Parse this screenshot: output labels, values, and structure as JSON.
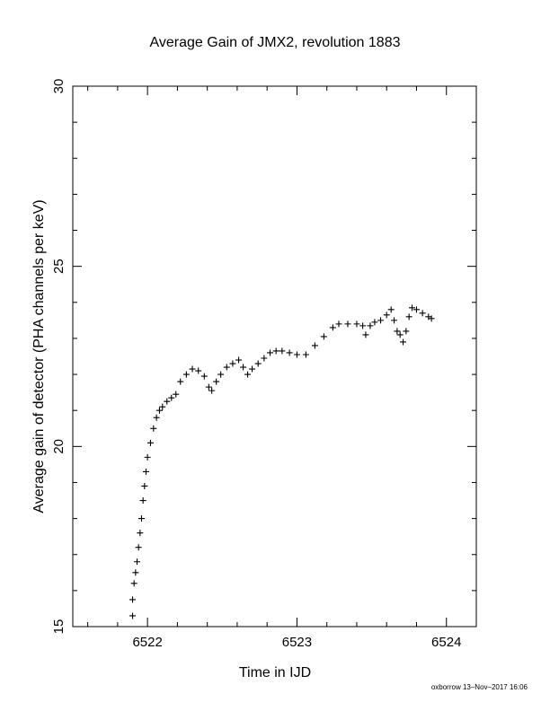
{
  "chart_data": {
    "type": "scatter",
    "title": "Average Gain of JMX2, revolution 1883",
    "xlabel": "Time in IJD",
    "ylabel": "Average gain of detector (PHA channels per keV)",
    "xlim": [
      6521.5,
      6524.2
    ],
    "ylim": [
      15,
      30
    ],
    "xticks": [
      6522,
      6523,
      6524
    ],
    "yticks": [
      15,
      20,
      25,
      30
    ],
    "marker": "plus",
    "grid": false,
    "legend": "none",
    "series": [
      {
        "points": [
          [
            6521.9,
            15.3
          ],
          [
            6521.9,
            15.75
          ],
          [
            6521.91,
            16.2
          ],
          [
            6521.92,
            16.5
          ],
          [
            6521.93,
            16.8
          ],
          [
            6521.94,
            17.2
          ],
          [
            6521.95,
            17.6
          ],
          [
            6521.96,
            18.0
          ],
          [
            6521.97,
            18.5
          ],
          [
            6521.98,
            18.9
          ],
          [
            6521.99,
            19.3
          ],
          [
            6522.0,
            19.7
          ],
          [
            6522.02,
            20.1
          ],
          [
            6522.04,
            20.5
          ],
          [
            6522.06,
            20.8
          ],
          [
            6522.08,
            21.0
          ],
          [
            6522.1,
            21.1
          ],
          [
            6522.13,
            21.25
          ],
          [
            6522.16,
            21.35
          ],
          [
            6522.19,
            21.45
          ],
          [
            6522.22,
            21.8
          ],
          [
            6522.26,
            22.0
          ],
          [
            6522.3,
            22.15
          ],
          [
            6522.34,
            22.1
          ],
          [
            6522.38,
            21.95
          ],
          [
            6522.41,
            21.65
          ],
          [
            6522.43,
            21.55
          ],
          [
            6522.46,
            21.8
          ],
          [
            6522.49,
            22.0
          ],
          [
            6522.53,
            22.2
          ],
          [
            6522.57,
            22.3
          ],
          [
            6522.61,
            22.4
          ],
          [
            6522.64,
            22.2
          ],
          [
            6522.67,
            22.0
          ],
          [
            6522.7,
            22.15
          ],
          [
            6522.74,
            22.3
          ],
          [
            6522.78,
            22.45
          ],
          [
            6522.82,
            22.6
          ],
          [
            6522.86,
            22.65
          ],
          [
            6522.9,
            22.65
          ],
          [
            6522.95,
            22.6
          ],
          [
            6523.0,
            22.55
          ],
          [
            6523.06,
            22.55
          ],
          [
            6523.12,
            22.8
          ],
          [
            6523.18,
            23.05
          ],
          [
            6523.24,
            23.3
          ],
          [
            6523.28,
            23.4
          ],
          [
            6523.34,
            23.4
          ],
          [
            6523.4,
            23.4
          ],
          [
            6523.44,
            23.35
          ],
          [
            6523.46,
            23.1
          ],
          [
            6523.49,
            23.35
          ],
          [
            6523.52,
            23.45
          ],
          [
            6523.56,
            23.5
          ],
          [
            6523.6,
            23.65
          ],
          [
            6523.63,
            23.8
          ],
          [
            6523.65,
            23.5
          ],
          [
            6523.67,
            23.2
          ],
          [
            6523.69,
            23.1
          ],
          [
            6523.71,
            22.9
          ],
          [
            6523.73,
            23.2
          ],
          [
            6523.75,
            23.6
          ],
          [
            6523.77,
            23.85
          ],
          [
            6523.8,
            23.8
          ],
          [
            6523.84,
            23.7
          ],
          [
            6523.88,
            23.6
          ],
          [
            6523.9,
            23.55
          ]
        ]
      }
    ]
  },
  "footer": "oxborrow 13–Nov–2017 16:06"
}
